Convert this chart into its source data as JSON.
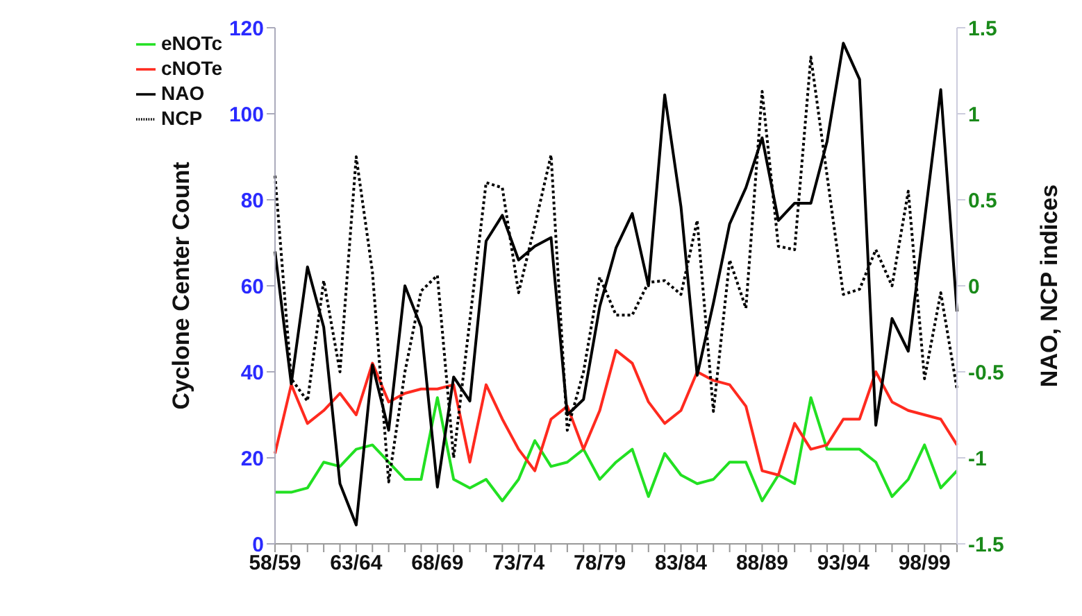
{
  "chart_data": {
    "type": "line",
    "xlabel": null,
    "ylabel": "Cyclone Center Count",
    "y2label": "NAO, NCP indices",
    "categories": [
      "58/59",
      null,
      null,
      null,
      null,
      "63/64",
      null,
      null,
      null,
      null,
      "68/69",
      null,
      null,
      null,
      null,
      "73/74",
      null,
      null,
      null,
      null,
      "78/79",
      null,
      null,
      null,
      null,
      "83/84",
      null,
      null,
      null,
      null,
      "88/89",
      null,
      null,
      null,
      null,
      "93/94",
      null,
      null,
      null,
      null,
      "98/99",
      null,
      null
    ],
    "series": [
      {
        "name": "eNOTc",
        "color": "#22e022",
        "values": [
          12,
          12,
          13,
          19,
          18,
          22,
          23,
          19,
          15,
          15,
          34,
          15,
          13,
          15,
          10,
          15,
          24,
          18,
          19,
          22,
          15,
          19,
          22,
          11,
          21,
          16,
          14,
          15,
          19,
          19,
          10,
          16,
          14,
          34,
          22,
          22,
          22,
          19,
          11,
          15,
          23,
          13,
          17
        ]
      },
      {
        "name": "cNOTe",
        "color": "#ff2a1f",
        "values": [
          21,
          37,
          28,
          31,
          35,
          30,
          42,
          33,
          35,
          36,
          36,
          37,
          19,
          37,
          29,
          22,
          17,
          29,
          32,
          22,
          31,
          45,
          42,
          33,
          28,
          31,
          40,
          38,
          37,
          32,
          17,
          16,
          28,
          22,
          23,
          29,
          29,
          40,
          33,
          31,
          30,
          29,
          23
        ]
      },
      {
        "name": "NAO",
        "color": "#000000",
        "axis": "y2",
        "line_style": "solid",
        "values": [
          0.2,
          -0.57,
          0.11,
          -0.24,
          -1.15,
          -1.39,
          -0.46,
          -0.84,
          0.0,
          -0.24,
          -1.17,
          -0.53,
          -0.67,
          0.26,
          0.41,
          0.15,
          0.23,
          0.28,
          -0.75,
          -0.66,
          -0.12,
          0.22,
          0.42,
          0.0,
          1.11,
          0.46,
          -0.52,
          -0.1,
          0.36,
          0.57,
          0.86,
          0.38,
          0.48,
          0.48,
          0.84,
          1.41,
          1.2,
          -0.81,
          -0.19,
          -0.38,
          0.38,
          1.14,
          -0.15
        ]
      },
      {
        "name": "NCP",
        "color": "#000000",
        "axis": "y2",
        "line_style": "dotted",
        "values": [
          0.64,
          -0.54,
          -0.67,
          0.03,
          -0.5,
          0.75,
          0.08,
          -1.14,
          -0.5,
          -0.03,
          0.06,
          -1.0,
          -0.2,
          0.6,
          0.57,
          -0.04,
          0.35,
          0.76,
          -0.84,
          -0.5,
          0.05,
          -0.17,
          -0.17,
          0.02,
          0.03,
          -0.05,
          0.38,
          -0.73,
          0.15,
          -0.13,
          1.13,
          0.23,
          0.21,
          1.33,
          0.64,
          -0.05,
          -0.02,
          0.21,
          0.0,
          0.55,
          -0.54,
          -0.04,
          -0.6
        ]
      }
    ],
    "ylim": [
      0,
      120
    ],
    "yticks": [
      0,
      20,
      40,
      60,
      80,
      100,
      120
    ],
    "y2lim": [
      -1.5,
      1.5
    ],
    "y2ticks": [
      -1.5,
      -1,
      -0.5,
      0,
      0.5,
      1,
      1.5
    ],
    "grid": false,
    "legend": "top left",
    "marker": "none",
    "line_style": "solid"
  }
}
